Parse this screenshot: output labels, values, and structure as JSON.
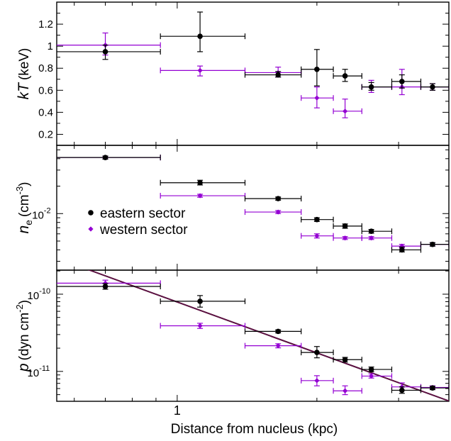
{
  "colors": {
    "eastern": "#000000",
    "western": "#9400d3",
    "fit_line": "#5a1040",
    "axis": "#000000"
  },
  "chart_data": [
    {
      "type": "scatter",
      "panel": "kT",
      "ylabel": {
        "main": "kT",
        "unit": "(keV)"
      },
      "xscale": "log",
      "xlim": [
        0.55,
        3.85
      ],
      "yscale": "linear",
      "ylim": [
        0.1,
        1.4
      ],
      "yticks": [
        {
          "value": 0.2,
          "label": "0.2"
        },
        {
          "value": 0.4,
          "label": "0.4"
        },
        {
          "value": 0.6,
          "label": "0.6"
        },
        {
          "value": 0.8,
          "label": "0.8"
        },
        {
          "value": 1.0,
          "label": "1"
        },
        {
          "value": 1.2,
          "label": "1.2"
        }
      ],
      "series": [
        {
          "name": "eastern sector",
          "marker": "circle",
          "color_key": "eastern",
          "points": [
            {
              "x": 0.7,
              "xlo": 0.3,
              "xhi": 0.92,
              "y": 0.95,
              "ylo": 0.88,
              "yhi": 1.01
            },
            {
              "x": 1.12,
              "xlo": 0.92,
              "xhi": 1.4,
              "y": 1.09,
              "ylo": 0.95,
              "yhi": 1.31
            },
            {
              "x": 1.65,
              "xlo": 1.4,
              "xhi": 1.85,
              "y": 0.74,
              "ylo": 0.72,
              "yhi": 0.77
            },
            {
              "x": 2.0,
              "xlo": 1.85,
              "xhi": 2.17,
              "y": 0.79,
              "ylo": 0.64,
              "yhi": 0.97
            },
            {
              "x": 2.3,
              "xlo": 2.17,
              "xhi": 2.5,
              "y": 0.73,
              "ylo": 0.68,
              "yhi": 0.79
            },
            {
              "x": 2.62,
              "xlo": 2.5,
              "xhi": 2.9,
              "y": 0.63,
              "ylo": 0.6,
              "yhi": 0.67
            },
            {
              "x": 3.05,
              "xlo": 2.9,
              "xhi": 3.35,
              "y": 0.68,
              "ylo": 0.62,
              "yhi": 0.74
            },
            {
              "x": 3.55,
              "xlo": 3.35,
              "xhi": 3.85,
              "y": 0.63,
              "ylo": 0.6,
              "yhi": 0.66
            }
          ]
        },
        {
          "name": "western sector",
          "marker": "diamond",
          "color_key": "western",
          "points": [
            {
              "x": 0.7,
              "xlo": 0.3,
              "xhi": 0.92,
              "y": 1.01,
              "ylo": 0.92,
              "yhi": 1.12
            },
            {
              "x": 1.12,
              "xlo": 0.92,
              "xhi": 1.4,
              "y": 0.78,
              "ylo": 0.73,
              "yhi": 0.82
            },
            {
              "x": 1.65,
              "xlo": 1.4,
              "xhi": 1.85,
              "y": 0.76,
              "ylo": 0.72,
              "yhi": 0.81
            },
            {
              "x": 2.0,
              "xlo": 1.85,
              "xhi": 2.17,
              "y": 0.53,
              "ylo": 0.44,
              "yhi": 0.63
            },
            {
              "x": 2.3,
              "xlo": 2.17,
              "xhi": 2.5,
              "y": 0.41,
              "ylo": 0.35,
              "yhi": 0.52
            },
            {
              "x": 2.62,
              "xlo": 2.5,
              "xhi": 2.9,
              "y": 0.63,
              "ylo": 0.58,
              "yhi": 0.69
            },
            {
              "x": 3.05,
              "xlo": 2.9,
              "xhi": 3.35,
              "y": 0.63,
              "ylo": 0.56,
              "yhi": 0.79
            },
            {
              "x": 3.55,
              "xlo": 3.35,
              "xhi": 3.85,
              "y": 0.63,
              "ylo": 0.6,
              "yhi": 0.66
            }
          ]
        }
      ]
    },
    {
      "type": "scatter",
      "panel": "ne",
      "ylabel": {
        "main": "n",
        "sub": "e",
        "unit": "(cm",
        "sup": "-3",
        "close": ")"
      },
      "xscale": "log",
      "xlim": [
        0.55,
        3.85
      ],
      "yscale": "log",
      "ylim": [
        0.0024,
        0.056
      ],
      "yticks": [
        {
          "value": 0.01,
          "base": "10",
          "exp": "-2"
        }
      ],
      "legend": {
        "position": "center-left",
        "entries": [
          {
            "label": "eastern sector",
            "marker": "circle",
            "color_key": "eastern"
          },
          {
            "label": "western sector",
            "marker": "diamond",
            "color_key": "western"
          }
        ]
      },
      "series": [
        {
          "name": "eastern sector",
          "marker": "circle",
          "color_key": "eastern",
          "points": [
            {
              "x": 0.7,
              "xlo": 0.3,
              "xhi": 0.92,
              "y": 0.0412,
              "ylo": 0.0395,
              "yhi": 0.0428
            },
            {
              "x": 1.12,
              "xlo": 0.92,
              "xhi": 1.4,
              "y": 0.0218,
              "ylo": 0.0206,
              "yhi": 0.0232
            },
            {
              "x": 1.65,
              "xlo": 1.4,
              "xhi": 1.85,
              "y": 0.0146,
              "ylo": 0.014,
              "yhi": 0.0152
            },
            {
              "x": 2.0,
              "xlo": 1.85,
              "xhi": 2.17,
              "y": 0.0086,
              "ylo": 0.0082,
              "yhi": 0.009
            },
            {
              "x": 2.3,
              "xlo": 2.17,
              "xhi": 2.5,
              "y": 0.0073,
              "ylo": 0.0069,
              "yhi": 0.0077
            },
            {
              "x": 2.62,
              "xlo": 2.5,
              "xhi": 2.9,
              "y": 0.0064,
              "ylo": 0.0061,
              "yhi": 0.0067
            },
            {
              "x": 3.05,
              "xlo": 2.9,
              "xhi": 3.35,
              "y": 0.004,
              "ylo": 0.0038,
              "yhi": 0.0043
            },
            {
              "x": 3.55,
              "xlo": 3.35,
              "xhi": 3.85,
              "y": 0.0046,
              "ylo": 0.0044,
              "yhi": 0.0048
            }
          ]
        },
        {
          "name": "western sector",
          "marker": "diamond",
          "color_key": "western",
          "points": [
            {
              "x": 0.7,
              "xlo": 0.3,
              "xhi": 0.92,
              "y": 0.0412,
              "ylo": 0.0398,
              "yhi": 0.0426
            },
            {
              "x": 1.12,
              "xlo": 0.92,
              "xhi": 1.4,
              "y": 0.0157,
              "ylo": 0.0151,
              "yhi": 0.0163
            },
            {
              "x": 1.65,
              "xlo": 1.4,
              "xhi": 1.85,
              "y": 0.0104,
              "ylo": 0.01,
              "yhi": 0.0108
            },
            {
              "x": 2.0,
              "xlo": 1.85,
              "xhi": 2.17,
              "y": 0.0057,
              "ylo": 0.0054,
              "yhi": 0.006
            },
            {
              "x": 2.3,
              "xlo": 2.17,
              "xhi": 2.5,
              "y": 0.0054,
              "ylo": 0.0052,
              "yhi": 0.0056
            },
            {
              "x": 2.62,
              "xlo": 2.5,
              "xhi": 2.9,
              "y": 0.0054,
              "ylo": 0.0052,
              "yhi": 0.0056
            },
            {
              "x": 3.05,
              "xlo": 2.9,
              "xhi": 3.35,
              "y": 0.0044,
              "ylo": 0.0042,
              "yhi": 0.0046
            },
            {
              "x": 3.55,
              "xlo": 3.35,
              "xhi": 3.85,
              "y": 0.0046,
              "ylo": 0.0044,
              "yhi": 0.0048
            }
          ]
        }
      ]
    },
    {
      "type": "scatter",
      "panel": "pressure",
      "ylabel": {
        "main": "p",
        "unit": "(dyn cm",
        "sup": "-2",
        "close": ")"
      },
      "xlabel": "Distance from nucleus (kpc)",
      "xscale": "log",
      "xlim": [
        0.55,
        3.85
      ],
      "xticks": [
        {
          "value": 1,
          "label": "1"
        }
      ],
      "yscale": "log",
      "ylim": [
        4.1e-12,
        2.05e-10
      ],
      "yticks": [
        {
          "value": 1e-10,
          "base": "10",
          "exp": "-10"
        },
        {
          "value": 1e-11,
          "base": "10",
          "exp": "-11"
        }
      ],
      "fit_line": {
        "color_key": "fit_line",
        "points": [
          {
            "x": 0.55,
            "y": 2.93e-10
          },
          {
            "x": 3.85,
            "y": 4.14e-12
          }
        ]
      },
      "series": [
        {
          "name": "eastern sector",
          "marker": "circle",
          "color_key": "eastern",
          "points": [
            {
              "x": 0.7,
              "xlo": 0.3,
              "xhi": 0.92,
              "y": 1.26e-10,
              "ylo": 1.16e-10,
              "yhi": 1.37e-10
            },
            {
              "x": 1.12,
              "xlo": 0.92,
              "xhi": 1.4,
              "y": 8.1e-11,
              "ylo": 6.8e-11,
              "yhi": 9.6e-11
            },
            {
              "x": 1.65,
              "xlo": 1.4,
              "xhi": 1.85,
              "y": 3.3e-11,
              "ylo": 3.15e-11,
              "yhi": 3.45e-11
            },
            {
              "x": 2.0,
              "xlo": 1.85,
              "xhi": 2.17,
              "y": 1.76e-11,
              "ylo": 1.5e-11,
              "yhi": 2.1e-11
            },
            {
              "x": 2.3,
              "xlo": 2.17,
              "xhi": 2.5,
              "y": 1.42e-11,
              "ylo": 1.32e-11,
              "yhi": 1.52e-11
            },
            {
              "x": 2.62,
              "xlo": 2.5,
              "xhi": 2.9,
              "y": 1.06e-11,
              "ylo": 9.9e-12,
              "yhi": 1.14e-11
            },
            {
              "x": 3.05,
              "xlo": 2.9,
              "xhi": 3.35,
              "y": 5.7e-12,
              "ylo": 5.2e-12,
              "yhi": 6.3e-12
            },
            {
              "x": 3.55,
              "xlo": 3.35,
              "xhi": 3.85,
              "y": 6.1e-12,
              "ylo": 5.8e-12,
              "yhi": 6.4e-12
            }
          ]
        },
        {
          "name": "western sector",
          "marker": "diamond",
          "color_key": "western",
          "points": [
            {
              "x": 0.7,
              "xlo": 0.3,
              "xhi": 0.92,
              "y": 1.39e-10,
              "ylo": 1.27e-10,
              "yhi": 1.52e-10
            },
            {
              "x": 1.12,
              "xlo": 0.92,
              "xhi": 1.4,
              "y": 3.9e-11,
              "ylo": 3.6e-11,
              "yhi": 4.2e-11
            },
            {
              "x": 1.65,
              "xlo": 1.4,
              "xhi": 1.85,
              "y": 2.15e-11,
              "ylo": 2.02e-11,
              "yhi": 2.28e-11
            },
            {
              "x": 2.0,
              "xlo": 1.85,
              "xhi": 2.17,
              "y": 7.6e-12,
              "ylo": 6.5e-12,
              "yhi": 8.8e-12
            },
            {
              "x": 2.3,
              "xlo": 2.17,
              "xhi": 2.5,
              "y": 5.6e-12,
              "ylo": 5e-12,
              "yhi": 6.5e-12
            },
            {
              "x": 2.62,
              "xlo": 2.5,
              "xhi": 2.9,
              "y": 8.7e-12,
              "ylo": 8.2e-12,
              "yhi": 9.3e-12
            },
            {
              "x": 3.05,
              "xlo": 2.9,
              "xhi": 3.35,
              "y": 6.3e-12,
              "ylo": 5.7e-12,
              "yhi": 7.1e-12
            },
            {
              "x": 3.55,
              "xlo": 3.35,
              "xhi": 3.85,
              "y": 6.2e-12,
              "ylo": 5.9e-12,
              "yhi": 6.5e-12
            }
          ]
        }
      ]
    }
  ]
}
